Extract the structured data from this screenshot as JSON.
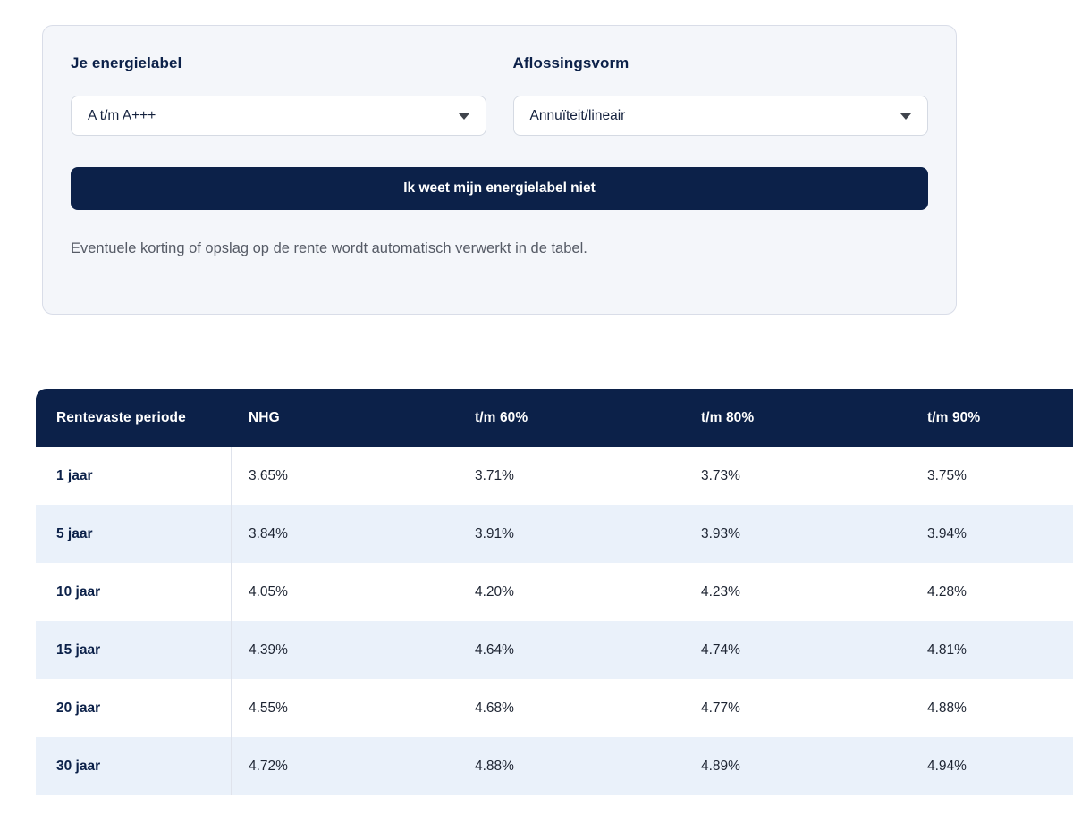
{
  "filters": {
    "energylabel": {
      "label": "Je energielabel",
      "value": "A t/m A+++"
    },
    "repayment": {
      "label": "Aflossingsvorm",
      "value": "Annuïteit/lineair"
    },
    "unknown_label_button": "Ik weet mijn energielabel niet",
    "note": "Eventuele korting of opslag op de rente wordt automatisch verwerkt in de tabel."
  },
  "rate_table": {
    "columns": [
      "Rentevaste periode",
      "NHG",
      "t/m 60%",
      "t/m 80%",
      "t/m 90%"
    ],
    "rows": [
      {
        "period": "1 jaar",
        "values": [
          "3.65%",
          "3.71%",
          "3.73%",
          "3.75%"
        ]
      },
      {
        "period": "5 jaar",
        "values": [
          "3.84%",
          "3.91%",
          "3.93%",
          "3.94%"
        ]
      },
      {
        "period": "10 jaar",
        "values": [
          "4.05%",
          "4.20%",
          "4.23%",
          "4.28%"
        ]
      },
      {
        "period": "15 jaar",
        "values": [
          "4.39%",
          "4.64%",
          "4.74%",
          "4.81%"
        ]
      },
      {
        "period": "20 jaar",
        "values": [
          "4.55%",
          "4.68%",
          "4.77%",
          "4.88%"
        ]
      },
      {
        "period": "30 jaar",
        "values": [
          "4.72%",
          "4.88%",
          "4.89%",
          "4.94%"
        ]
      }
    ]
  },
  "colors": {
    "navy": "#0c2149",
    "stripe": "#eaf1fa",
    "card_bg": "#f4f6fa",
    "card_border": "#d9dde8",
    "note_gray": "#565b66"
  }
}
